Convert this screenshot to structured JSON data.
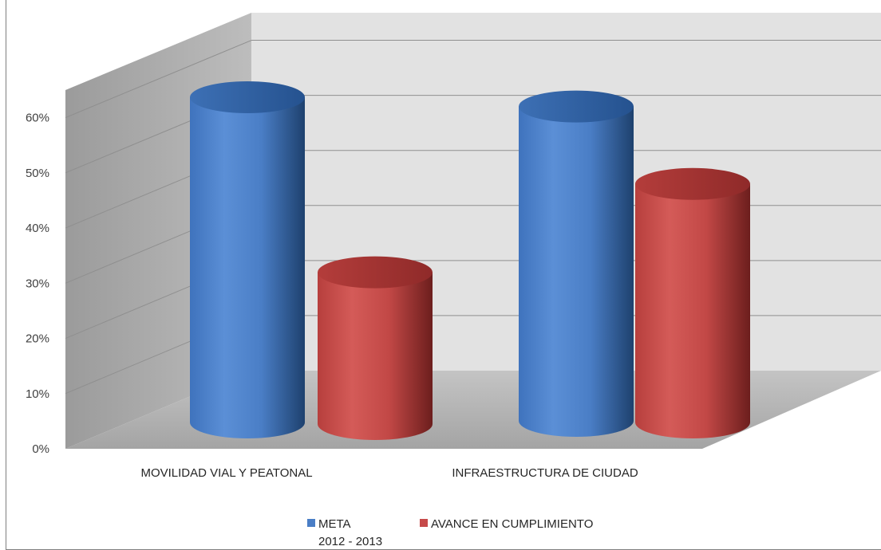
{
  "chart_data": {
    "type": "bar",
    "style": "3d-cylinder",
    "categories": [
      "MOVILIDAD VIAL Y PEATONAL",
      "INFRAESTRUCTURA DE CIUDAD"
    ],
    "series": [
      {
        "name": "META\n2012 - 2013",
        "values": [
          0.6,
          0.58
        ],
        "color": "#4a7ec6"
      },
      {
        "name": "AVANCE EN CUMPLIMIENTO",
        "values": [
          0.28,
          0.44
        ],
        "color": "#c64a4a"
      }
    ],
    "yticks": [
      "0%",
      "10%",
      "20%",
      "30%",
      "40%",
      "50%",
      "60%"
    ],
    "ylim": [
      0,
      0.65
    ],
    "grid": true,
    "legend_position": "bottom",
    "colors": {
      "wall_back": "#e2e2e2",
      "wall_side": "#a9a9a9",
      "floor": "#b4b4b4",
      "grid": "#8f8f8f"
    }
  }
}
